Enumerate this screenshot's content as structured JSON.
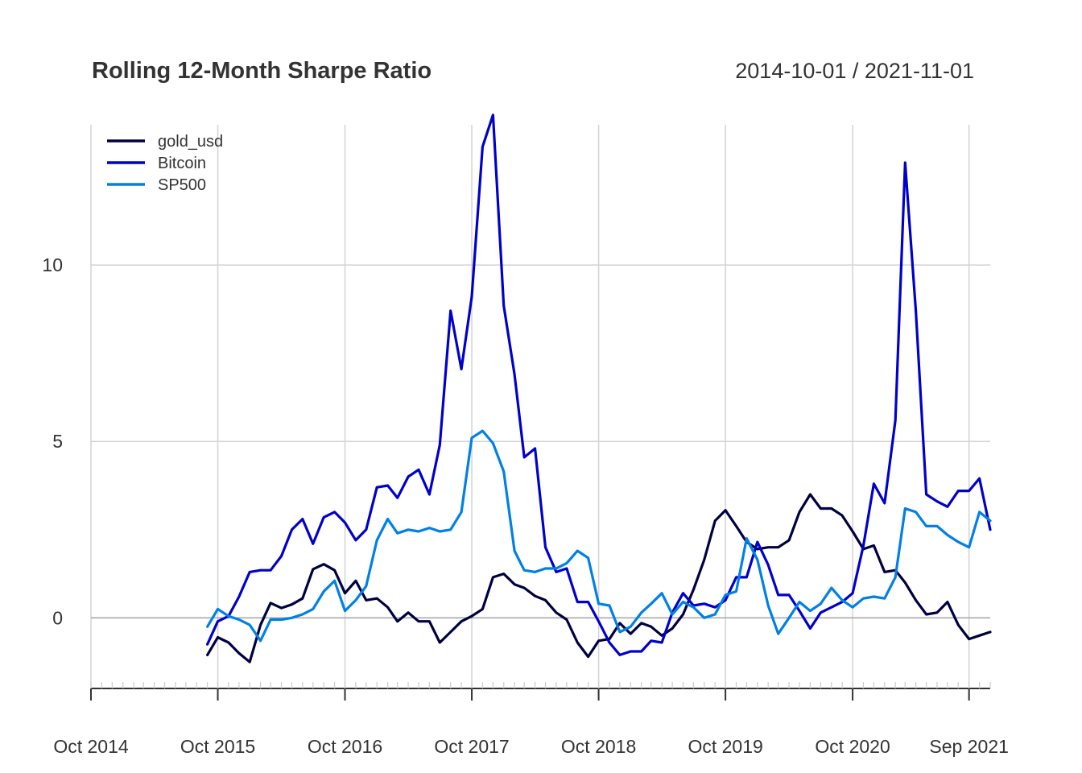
{
  "chart_data": {
    "type": "line",
    "title": "Rolling 12-Month Sharpe Ratio",
    "date_range": "2014-10-01 / 2021-11-01",
    "xlabel": "",
    "ylabel": "",
    "ylim": [
      -2.0,
      14.2
    ],
    "y_ticks": [
      0,
      5,
      10
    ],
    "y_tick_labels": [
      "0",
      "5",
      "10"
    ],
    "x_range": [
      "2014-10-01",
      "2021-11-01"
    ],
    "x_ticks": [
      {
        "date": "2014-10-01",
        "label": "Oct 2014"
      },
      {
        "date": "2015-10-01",
        "label": "Oct 2015"
      },
      {
        "date": "2016-10-01",
        "label": "Oct 2016"
      },
      {
        "date": "2017-10-01",
        "label": "Oct 2017"
      },
      {
        "date": "2018-10-01",
        "label": "Oct 2018"
      },
      {
        "date": "2019-10-01",
        "label": "Oct 2019"
      },
      {
        "date": "2020-10-01",
        "label": "Oct 2020"
      },
      {
        "date": "2021-09-01",
        "label": "Sep 2021"
      }
    ],
    "grid": true,
    "legend_position": "top-left",
    "x": [
      "2015-09-01",
      "2015-10-01",
      "2015-11-01",
      "2015-12-01",
      "2016-01-01",
      "2016-02-01",
      "2016-03-01",
      "2016-04-01",
      "2016-05-01",
      "2016-06-01",
      "2016-07-01",
      "2016-08-01",
      "2016-09-01",
      "2016-10-01",
      "2016-11-01",
      "2016-12-01",
      "2017-01-01",
      "2017-02-01",
      "2017-03-01",
      "2017-04-01",
      "2017-05-01",
      "2017-06-01",
      "2017-07-01",
      "2017-08-01",
      "2017-09-01",
      "2017-10-01",
      "2017-11-01",
      "2017-12-01",
      "2018-01-01",
      "2018-02-01",
      "2018-03-01",
      "2018-04-01",
      "2018-05-01",
      "2018-06-01",
      "2018-07-01",
      "2018-08-01",
      "2018-09-01",
      "2018-10-01",
      "2018-11-01",
      "2018-12-01",
      "2019-01-01",
      "2019-02-01",
      "2019-03-01",
      "2019-04-01",
      "2019-05-01",
      "2019-06-01",
      "2019-07-01",
      "2019-08-01",
      "2019-09-01",
      "2019-10-01",
      "2019-11-01",
      "2019-12-01",
      "2020-01-01",
      "2020-02-01",
      "2020-03-01",
      "2020-04-01",
      "2020-05-01",
      "2020-06-01",
      "2020-07-01",
      "2020-08-01",
      "2020-09-01",
      "2020-10-01",
      "2020-11-01",
      "2020-12-01",
      "2021-01-01",
      "2021-02-01",
      "2021-03-01",
      "2021-04-01",
      "2021-05-01",
      "2021-06-01",
      "2021-07-01",
      "2021-08-01",
      "2021-09-01",
      "2021-10-01",
      "2021-11-01"
    ],
    "series": [
      {
        "name": "gold_usd",
        "color": "#000040",
        "values": [
          -1.05,
          -0.55,
          -0.7,
          -1.0,
          -1.25,
          -0.2,
          0.42,
          0.28,
          0.38,
          0.55,
          1.38,
          1.52,
          1.35,
          0.7,
          1.05,
          0.5,
          0.55,
          0.3,
          -0.1,
          0.15,
          -0.1,
          -0.1,
          -0.7,
          -0.4,
          -0.1,
          0.05,
          0.25,
          1.15,
          1.25,
          0.95,
          0.85,
          0.62,
          0.5,
          0.15,
          -0.05,
          -0.7,
          -1.1,
          -0.65,
          -0.6,
          -0.15,
          -0.45,
          -0.15,
          -0.25,
          -0.5,
          -0.3,
          0.1,
          0.8,
          1.65,
          2.75,
          3.05,
          2.6,
          2.15,
          1.95,
          2.0,
          2.0,
          2.2,
          3.0,
          3.5,
          3.1,
          3.1,
          2.9,
          2.45,
          1.95,
          2.05,
          1.3,
          1.35,
          1.0,
          0.5,
          0.1,
          0.15,
          0.45,
          -0.2,
          -0.6,
          -0.5,
          -0.4
        ]
      },
      {
        "name": "Bitcoin",
        "color": "#0000CD",
        "values": [
          -0.75,
          -0.1,
          0.05,
          0.6,
          1.3,
          1.35,
          1.35,
          1.75,
          2.5,
          2.8,
          2.1,
          2.85,
          3.0,
          2.7,
          2.2,
          2.5,
          3.7,
          3.75,
          3.4,
          4.0,
          4.2,
          3.5,
          4.9,
          8.7,
          7.05,
          9.1,
          13.35,
          14.25,
          8.85,
          6.9,
          4.55,
          4.8,
          2.0,
          1.3,
          1.4,
          0.45,
          0.45,
          -0.1,
          -0.7,
          -1.05,
          -0.95,
          -0.95,
          -0.65,
          -0.7,
          0.15,
          0.7,
          0.35,
          0.4,
          0.3,
          0.5,
          1.15,
          1.15,
          2.15,
          1.5,
          0.65,
          0.65,
          0.2,
          -0.3,
          0.15,
          0.3,
          0.45,
          0.7,
          2.05,
          3.8,
          3.25,
          5.6,
          12.9,
          8.7,
          3.5,
          3.3,
          3.15,
          3.6,
          3.6,
          3.95,
          2.5
        ]
      },
      {
        "name": "SP500",
        "color": "#0080E6",
        "values": [
          -0.25,
          0.25,
          0.05,
          -0.05,
          -0.2,
          -0.65,
          -0.05,
          -0.05,
          0.0,
          0.1,
          0.25,
          0.75,
          1.05,
          0.2,
          0.5,
          0.9,
          2.2,
          2.8,
          2.4,
          2.5,
          2.45,
          2.55,
          2.45,
          2.5,
          3.0,
          5.1,
          5.3,
          4.95,
          4.15,
          1.9,
          1.35,
          1.3,
          1.4,
          1.4,
          1.55,
          1.9,
          1.7,
          0.4,
          0.35,
          -0.4,
          -0.25,
          0.15,
          0.4,
          0.7,
          0.1,
          0.45,
          0.3,
          0.0,
          0.1,
          0.65,
          0.75,
          2.25,
          1.65,
          0.35,
          -0.45,
          0.0,
          0.45,
          0.2,
          0.4,
          0.85,
          0.5,
          0.3,
          0.55,
          0.6,
          0.55,
          1.15,
          3.1,
          3.0,
          2.6,
          2.6,
          2.35,
          2.15,
          2.0,
          3.0,
          2.75
        ]
      }
    ]
  }
}
